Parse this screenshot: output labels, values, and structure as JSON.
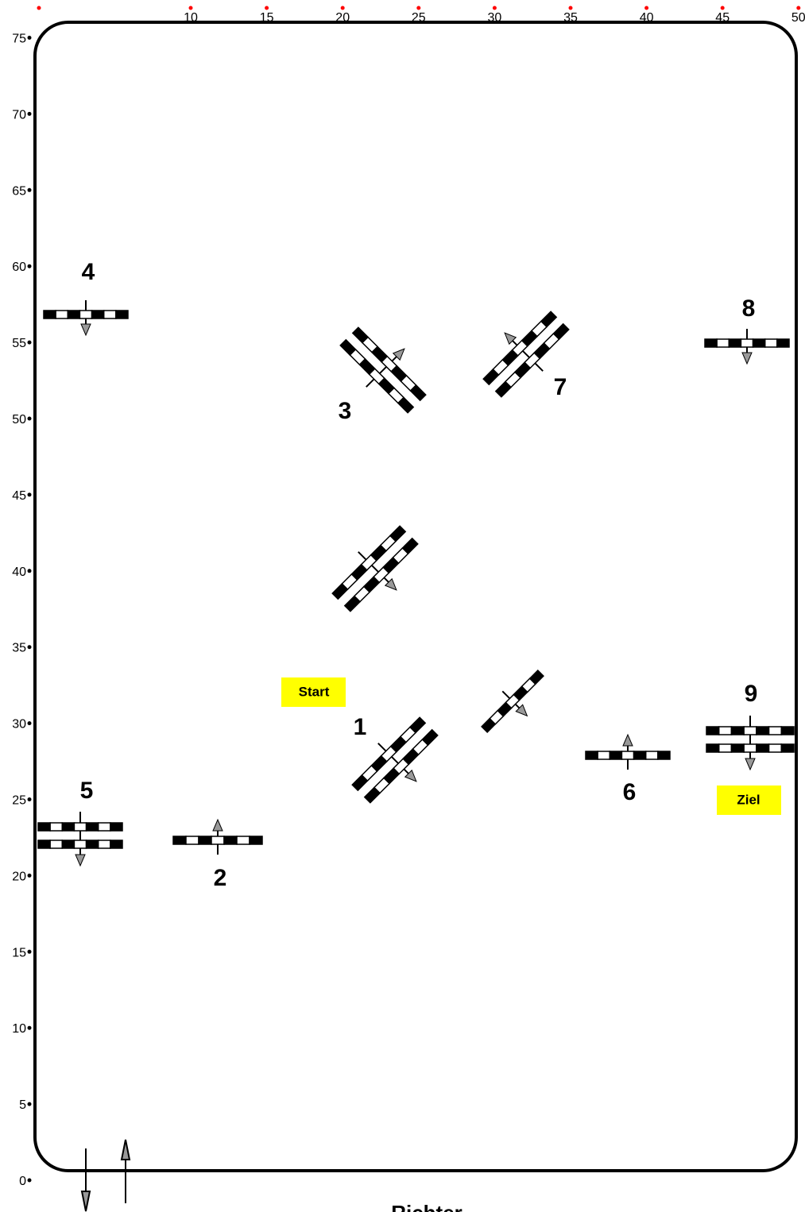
{
  "x_axis": {
    "labels": [
      10,
      15,
      20,
      25,
      30,
      35,
      40,
      45,
      50
    ]
  },
  "y_axis": {
    "labels": [
      0,
      5,
      10,
      15,
      20,
      25,
      30,
      35,
      40,
      45,
      50,
      55,
      60,
      65,
      70,
      75
    ]
  },
  "obstacles": [
    {
      "label": "1"
    },
    {
      "label": "2"
    },
    {
      "label": "3"
    },
    {
      "label": "4"
    },
    {
      "label": "5"
    },
    {
      "label": "6"
    },
    {
      "label": "7"
    },
    {
      "label": "8"
    },
    {
      "label": "9"
    }
  ],
  "start": "Start",
  "finish": "Ziel",
  "judge": "Richter"
}
